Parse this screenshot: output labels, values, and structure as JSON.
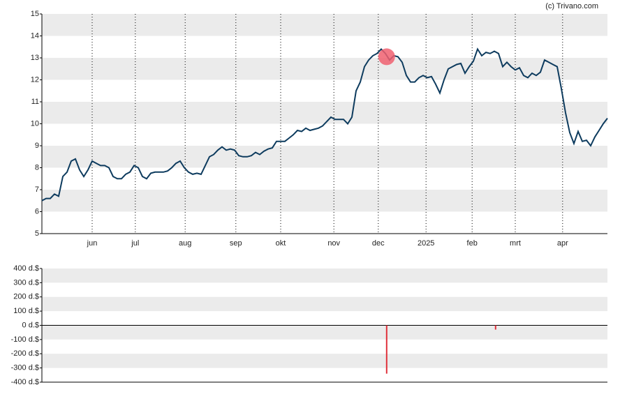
{
  "source": "(c) Trivano.com",
  "chart_data": [
    {
      "type": "line",
      "series": [
        {
          "color": "#0d3b5e",
          "values": [
            6.5,
            6.6,
            6.6,
            6.8,
            6.7,
            7.6,
            7.8,
            8.3,
            8.4,
            7.9,
            7.6,
            7.9,
            8.3,
            8.2,
            8.1,
            8.1,
            8.0,
            7.6,
            7.5,
            7.5,
            7.7,
            7.8,
            8.1,
            8.0,
            7.6,
            7.5,
            7.75,
            7.8,
            7.8,
            7.8,
            7.85,
            8.0,
            8.2,
            8.3,
            8.0,
            7.8,
            7.7,
            7.75,
            7.7,
            8.1,
            8.5,
            8.6,
            8.8,
            8.95,
            8.8,
            8.85,
            8.8,
            8.55,
            8.5,
            8.5,
            8.55,
            8.7,
            8.6,
            8.75,
            8.85,
            8.9,
            9.2,
            9.2,
            9.2,
            9.35,
            9.5,
            9.7,
            9.65,
            9.8,
            9.7,
            9.75,
            9.8,
            9.9,
            10.1,
            10.3,
            10.2,
            10.2,
            10.2,
            10.0,
            10.3,
            11.5,
            11.9,
            12.6,
            12.9,
            13.1,
            13.2,
            13.4,
            13.2,
            12.9,
            13.1,
            13.05,
            12.8,
            12.2,
            11.9,
            11.9,
            12.1,
            12.2,
            12.1,
            12.15,
            11.8,
            11.4,
            12.0,
            12.5,
            12.6,
            12.7,
            12.75,
            12.3,
            12.6,
            12.85,
            13.4,
            13.1,
            13.25,
            13.2,
            13.3,
            13.2,
            12.6,
            12.8,
            12.6,
            12.45,
            12.55,
            12.2,
            12.1,
            12.3,
            12.2,
            12.35,
            12.9,
            12.8,
            12.7,
            12.6,
            11.6,
            10.5,
            9.6,
            9.1,
            9.65,
            9.2,
            9.25,
            9.0,
            9.4,
            9.7,
            10.0,
            10.25
          ]
        }
      ],
      "xlim": [
        0,
        135
      ],
      "xticks": [
        {
          "value": 12,
          "label": "jun"
        },
        {
          "value": 22.3,
          "label": "jul"
        },
        {
          "value": 34.2,
          "label": "aug"
        },
        {
          "value": 46.3,
          "label": "sep"
        },
        {
          "value": 57,
          "label": "okt"
        },
        {
          "value": 69.7,
          "label": "nov"
        },
        {
          "value": 80.3,
          "label": "dec"
        },
        {
          "value": 91.7,
          "label": "2025"
        },
        {
          "value": 102.7,
          "label": "feb"
        },
        {
          "value": 113,
          "label": "mrt"
        },
        {
          "value": 124.3,
          "label": "apr"
        }
      ],
      "ylim": [
        5,
        15
      ],
      "yticks": [
        5,
        6,
        7,
        8,
        9,
        10,
        11,
        12,
        13,
        14,
        15
      ],
      "highlight": {
        "x": 82.3,
        "y": 13.05,
        "color": "#f06070"
      }
    },
    {
      "type": "bar",
      "x": [
        82.3,
        108.3
      ],
      "values": [
        -340,
        -30
      ],
      "color": "#e0303a",
      "xlim": [
        0,
        135
      ],
      "ylim": [
        -400,
        400
      ],
      "yticks": [
        {
          "value": -400,
          "label": "-400 d.$"
        },
        {
          "value": -300,
          "label": "-300 d.$"
        },
        {
          "value": -200,
          "label": "-200 d.$"
        },
        {
          "value": -100,
          "label": "-100 d.$"
        },
        {
          "value": 0,
          "label": "0 d.$"
        },
        {
          "value": 100,
          "label": "100 d.$"
        },
        {
          "value": 200,
          "label": "200 d.$"
        },
        {
          "value": 300,
          "label": "300 d.$"
        },
        {
          "value": 400,
          "label": "400 d.$"
        }
      ]
    }
  ]
}
